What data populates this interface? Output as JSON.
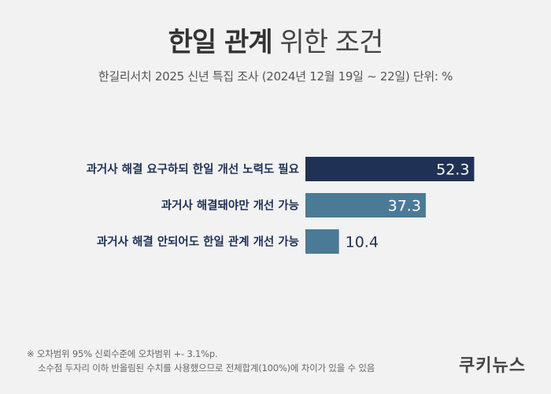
{
  "header": {
    "title_bold": "한일 관계",
    "title_light": "위한 조건",
    "subtitle": "한길리서치 2025 신년 특집 조사 (2024년 12월 19일 ~ 22일) 단위: %"
  },
  "chart_data": {
    "type": "bar",
    "orientation": "horizontal",
    "categories": [
      "과거사 해결 요구하되 한일 개선 노력도 필요",
      "과거사 해결돼야만 개선 가능",
      "과거사 해결 안되어도 한일 관계 개선 가능"
    ],
    "values": [
      52.3,
      37.3,
      10.4
    ],
    "value_labels": [
      "52.3",
      "37.3",
      "10.4"
    ],
    "colors": [
      "#1f3155",
      "#4b7a97",
      "#4b7a97"
    ],
    "xlim": [
      0,
      60
    ],
    "grid": false
  },
  "footnote": {
    "line1": "※ 오차범위 95% 신뢰수준에 오차범위 +- 3.1%p.",
    "line2": "소수점 두자리 이하 반올림된 수치를 사용했으므로 전체합계(100%)에 차이가 있을 수 있음"
  },
  "brand": {
    "logo": "쿠키뉴스"
  }
}
